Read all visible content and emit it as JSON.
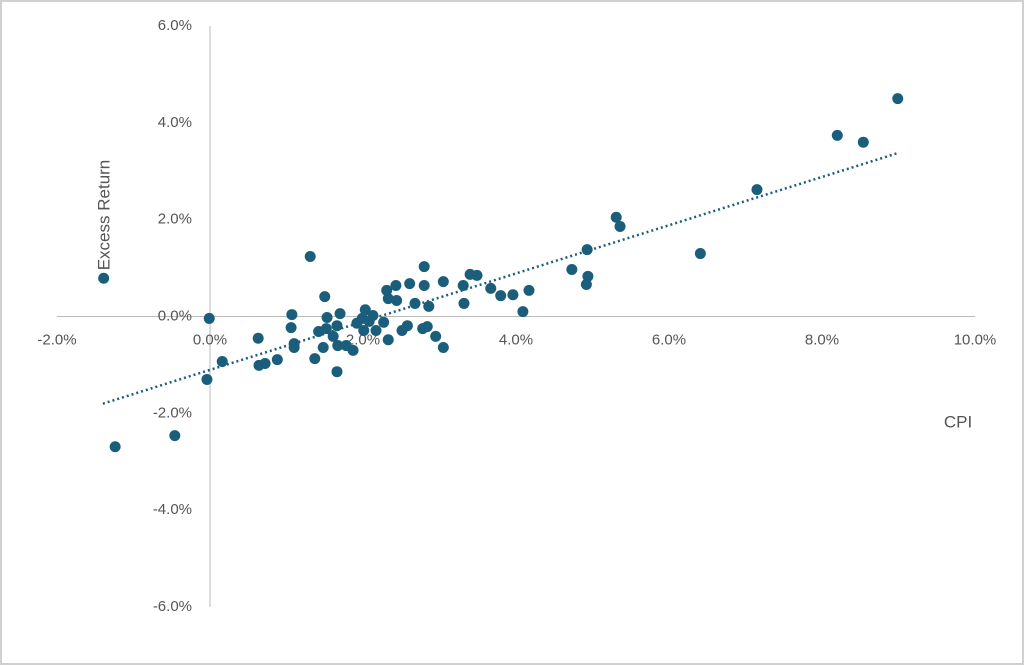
{
  "chart_data": {
    "type": "scatter",
    "x_label": "CPI",
    "y_label": "Excess Return",
    "xlim": [
      -2,
      10
    ],
    "ylim": [
      -6,
      6
    ],
    "xticks": [
      {
        "value": -2,
        "label": "-2.0%"
      },
      {
        "value": 0,
        "label": "0.0%"
      },
      {
        "value": 2,
        "label": "2.0%"
      },
      {
        "value": 4,
        "label": "4.0%"
      },
      {
        "value": 6,
        "label": "6.0%"
      },
      {
        "value": 8,
        "label": "8.0%"
      },
      {
        "value": 10,
        "label": "10.0%"
      }
    ],
    "yticks": [
      {
        "value": -6,
        "label": "-6.0%"
      },
      {
        "value": -4,
        "label": "-4.0%"
      },
      {
        "value": -2,
        "label": "-2.0%"
      },
      {
        "value": 0,
        "label": "0.0%"
      },
      {
        "value": 2,
        "label": "2.0%"
      },
      {
        "value": 4,
        "label": "4.0%"
      },
      {
        "value": 6,
        "label": "6.0%"
      }
    ],
    "color": "#1b5e7b",
    "x": [
      -1.39,
      -1.24,
      -0.46,
      -0.01,
      -0.04,
      0.16,
      0.63,
      0.64,
      0.72,
      0.88,
      1.07,
      1.06,
      1.1,
      1.1,
      1.31,
      1.37,
      1.42,
      1.48,
      1.5,
      1.53,
      1.52,
      1.61,
      1.66,
      1.66,
      1.7,
      1.67,
      1.78,
      1.87,
      1.92,
      1.99,
      2.03,
      2.01,
      2.08,
      2.13,
      2.17,
      2.27,
      2.31,
      2.33,
      2.33,
      2.43,
      2.44,
      2.51,
      2.58,
      2.61,
      2.68,
      2.8,
      2.8,
      2.78,
      2.84,
      2.86,
      2.95,
      3.05,
      3.05,
      3.31,
      3.32,
      3.4,
      3.49,
      3.67,
      3.8,
      3.96,
      4.09,
      4.17,
      4.73,
      4.93,
      4.92,
      4.94,
      5.31,
      5.36,
      6.41,
      7.15,
      8.2,
      8.54,
      8.99
    ],
    "values": [
      0.79,
      -2.69,
      -2.46,
      -0.04,
      -1.3,
      -0.93,
      -0.45,
      -1.01,
      -0.97,
      -0.89,
      0.04,
      -0.23,
      -0.56,
      -0.64,
      1.24,
      -0.87,
      -0.31,
      -0.64,
      0.41,
      -0.02,
      -0.25,
      -0.41,
      -1.14,
      -0.19,
      0.06,
      -0.6,
      -0.6,
      -0.7,
      -0.14,
      -0.04,
      0.14,
      -0.29,
      -0.1,
      0.02,
      -0.29,
      -0.12,
      0.54,
      0.37,
      -0.48,
      0.64,
      0.33,
      -0.29,
      -0.19,
      0.68,
      0.27,
      1.03,
      0.64,
      -0.25,
      -0.21,
      0.21,
      -0.41,
      0.72,
      -0.64,
      0.64,
      0.27,
      0.87,
      0.85,
      0.58,
      0.43,
      0.45,
      0.1,
      0.54,
      0.97,
      1.38,
      0.66,
      0.83,
      2.05,
      1.86,
      1.3,
      2.62,
      3.74,
      3.6,
      4.5
    ],
    "trendline": {
      "x": [
        -1.4,
        9.0
      ],
      "y": [
        -1.8,
        3.38
      ]
    }
  }
}
